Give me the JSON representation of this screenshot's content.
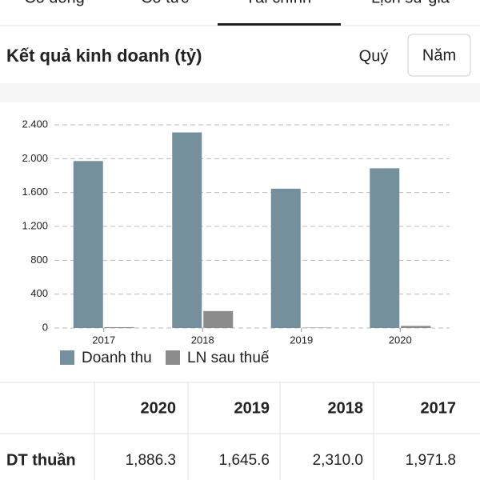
{
  "tabs": [
    "Cổ đông",
    "Cổ tức",
    "Tài chính",
    "Lịch sử giá"
  ],
  "header": {
    "title": "Kết quả kinh doanh (tỷ)",
    "buttons": [
      "Quý",
      "Năm"
    ]
  },
  "chart_data": {
    "type": "bar",
    "categories": [
      "2017",
      "2018",
      "2019",
      "2020"
    ],
    "series": [
      {
        "name": "Doanh thu",
        "color": "#73909c",
        "values": [
          1971.8,
          2310.0,
          1645.6,
          1886.3
        ]
      },
      {
        "name": "LN sau thuế",
        "color": "#8c8c8c",
        "values": [
          10,
          200,
          5,
          25
        ]
      }
    ],
    "ylim": [
      0,
      2400
    ],
    "yticks": [
      0,
      400,
      800,
      {
        "value": 1200,
        "label": "1.200"
      },
      {
        "value": 1600,
        "label": "1.600"
      },
      {
        "value": 2000,
        "label": "2.000"
      },
      {
        "value": 2400,
        "label": "2.400"
      }
    ],
    "grid": true,
    "legend": "bottom"
  },
  "table": {
    "header": [
      "2020",
      "2019",
      "2018",
      "2017"
    ],
    "rows": [
      [
        "DT thuần",
        "1,886.3",
        "1,645.6",
        "2,310.0",
        "1,971.8"
      ]
    ]
  }
}
